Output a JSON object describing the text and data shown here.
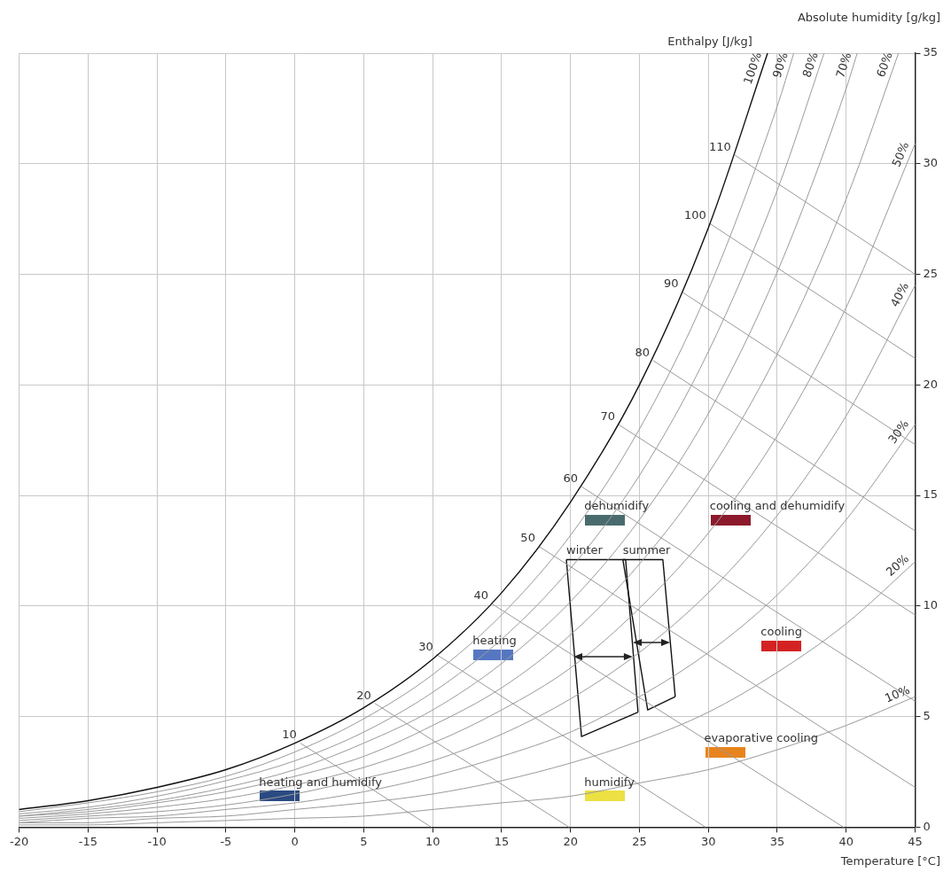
{
  "chart_data": {
    "type": "line",
    "xlabel": "Temperature [°C]",
    "ylabel": "Absolute humidity [g/kg]",
    "xlim": [
      -20,
      45
    ],
    "xticks": [
      -20,
      -15,
      -10,
      -5,
      0,
      5,
      10,
      15,
      20,
      25,
      30,
      35,
      40,
      45
    ],
    "ylim": [
      0,
      35
    ],
    "yticks": [
      0,
      5,
      10,
      15,
      20,
      25,
      30,
      35
    ],
    "grid": true,
    "legend": false,
    "marker": "none",
    "series": [
      {
        "name": "100%",
        "color": "#111111",
        "x": [
          -20,
          -15,
          -10,
          -5,
          0,
          5,
          10,
          15,
          20,
          25,
          30,
          34.3
        ],
        "values": [
          0.8,
          1.2,
          1.8,
          2.6,
          3.8,
          5.4,
          7.6,
          10.6,
          14.7,
          20.0,
          27.1,
          35
        ]
      },
      {
        "name": "90%",
        "color": "#9a9a9a",
        "x": [
          -20,
          -15,
          -10,
          -5,
          0,
          5,
          10,
          15,
          20,
          25,
          30,
          35,
          36.2
        ],
        "values": [
          0.7,
          1.1,
          1.6,
          2.3,
          3.4,
          4.9,
          6.9,
          9.6,
          13.2,
          18.0,
          24.3,
          32.6,
          35
        ]
      },
      {
        "name": "80%",
        "color": "#9a9a9a",
        "x": [
          -20,
          -15,
          -10,
          -5,
          0,
          5,
          10,
          15,
          20,
          25,
          30,
          35,
          38.4
        ],
        "values": [
          0.6,
          0.9,
          1.4,
          2.1,
          3.0,
          4.3,
          6.1,
          8.5,
          11.7,
          15.9,
          21.5,
          28.8,
          35
        ]
      },
      {
        "name": "70%",
        "color": "#9a9a9a",
        "x": [
          -20,
          -15,
          -10,
          -5,
          0,
          5,
          10,
          15,
          20,
          25,
          30,
          35,
          40,
          40.8
        ],
        "values": [
          0.5,
          0.8,
          1.2,
          1.8,
          2.6,
          3.8,
          5.3,
          7.4,
          10.2,
          13.9,
          18.7,
          25.1,
          33.4,
          35
        ]
      },
      {
        "name": "60%",
        "color": "#9a9a9a",
        "x": [
          -20,
          -15,
          -10,
          -5,
          0,
          5,
          10,
          15,
          20,
          25,
          30,
          35,
          40,
          43.8
        ],
        "values": [
          0.5,
          0.7,
          1.1,
          1.6,
          2.3,
          3.2,
          4.6,
          6.3,
          8.7,
          11.9,
          16.0,
          21.4,
          28.4,
          35
        ]
      },
      {
        "name": "50%",
        "color": "#9a9a9a",
        "x": [
          -20,
          -15,
          -10,
          -5,
          0,
          5,
          10,
          15,
          20,
          25,
          30,
          35,
          40,
          45
        ],
        "values": [
          0.4,
          0.6,
          0.9,
          1.3,
          1.9,
          2.7,
          3.8,
          5.3,
          7.2,
          9.9,
          13.3,
          17.7,
          23.5,
          30.9
        ]
      },
      {
        "name": "40%",
        "color": "#9a9a9a",
        "x": [
          -20,
          -15,
          -10,
          -5,
          0,
          5,
          10,
          15,
          20,
          25,
          30,
          35,
          40,
          45
        ],
        "values": [
          0.3,
          0.5,
          0.7,
          1.0,
          1.5,
          2.2,
          3.0,
          4.2,
          5.8,
          7.9,
          10.6,
          14.1,
          18.6,
          24.5
        ]
      },
      {
        "name": "30%",
        "color": "#9a9a9a",
        "x": [
          -20,
          -15,
          -10,
          -5,
          0,
          5,
          10,
          15,
          20,
          25,
          30,
          35,
          40,
          45
        ],
        "values": [
          0.2,
          0.4,
          0.5,
          0.8,
          1.1,
          1.6,
          2.3,
          3.2,
          4.3,
          5.9,
          7.9,
          10.5,
          13.9,
          18.2
        ]
      },
      {
        "name": "20%",
        "color": "#9a9a9a",
        "x": [
          -20,
          -15,
          -10,
          -5,
          0,
          5,
          10,
          15,
          20,
          25,
          30,
          35,
          40,
          45
        ],
        "values": [
          0.2,
          0.2,
          0.4,
          0.5,
          0.8,
          1.1,
          1.5,
          2.1,
          2.9,
          3.9,
          5.2,
          7.0,
          9.2,
          12.0
        ]
      },
      {
        "name": "10%",
        "color": "#9a9a9a",
        "x": [
          -20,
          -15,
          -10,
          -5,
          0,
          5,
          10,
          15,
          20,
          25,
          30,
          35,
          40,
          45
        ],
        "values": [
          0.1,
          0.1,
          0.2,
          0.3,
          0.4,
          0.5,
          0.8,
          1.1,
          1.4,
          2.0,
          2.6,
          3.5,
          4.6,
          5.9
        ]
      },
      {
        "name": "10",
        "color": "#9a9a9a",
        "x": [
          9.9,
          0.4
        ],
        "values": [
          0,
          3.8
        ]
      },
      {
        "name": "20",
        "color": "#9a9a9a",
        "x": [
          19.9,
          5.8
        ],
        "values": [
          0,
          5.6
        ]
      },
      {
        "name": "30",
        "color": "#9a9a9a",
        "x": [
          29.8,
          10.3
        ],
        "values": [
          0,
          7.8
        ]
      },
      {
        "name": "40",
        "color": "#9a9a9a",
        "x": [
          39.8,
          14.3
        ],
        "values": [
          0,
          10.1
        ]
      },
      {
        "name": "50",
        "color": "#9a9a9a",
        "x": [
          45,
          17.7
        ],
        "values": [
          1.8,
          12.7
        ]
      },
      {
        "name": "60",
        "color": "#9a9a9a",
        "x": [
          45,
          20.8
        ],
        "values": [
          5.7,
          15.4
        ]
      },
      {
        "name": "70",
        "color": "#9a9a9a",
        "x": [
          45,
          23.5
        ],
        "values": [
          9.6,
          18.2
        ]
      },
      {
        "name": "80",
        "color": "#9a9a9a",
        "x": [
          45,
          26
        ],
        "values": [
          13.4,
          21.1
        ]
      },
      {
        "name": "90",
        "color": "#9a9a9a",
        "x": [
          45,
          28.1
        ],
        "values": [
          17.3,
          24.2
        ]
      },
      {
        "name": "100",
        "color": "#9a9a9a",
        "x": [
          45,
          30.1
        ],
        "values": [
          21.2,
          27.3
        ]
      },
      {
        "name": "110",
        "color": "#9a9a9a",
        "x": [
          45,
          31.9
        ],
        "values": [
          25.0,
          30.4
        ]
      },
      {
        "name": "winter",
        "color": "#111111",
        "x": [
          19.7,
          24.0,
          24.9
        ],
        "values": [
          12.1,
          12.1,
          5.2
        ]
      },
      {
        "color": "#111111",
        "x": [
          19.7,
          20.8,
          24.9
        ],
        "values": [
          12.1,
          4.1,
          5.2
        ]
      },
      {
        "name": "summer",
        "color": "#111111",
        "x": [
          23.8,
          26.7,
          27.6
        ],
        "values": [
          12.1,
          12.1,
          5.9
        ]
      },
      {
        "color": "#111111",
        "x": [
          23.8,
          25.6,
          27.6
        ],
        "values": [
          12.1,
          5.3,
          5.9
        ]
      }
    ],
    "annotations": [
      "Enthalpy [J/kg]",
      "dehumidify",
      "cooling and dehumidify",
      "heating",
      "cooling",
      "evaporative cooling",
      "heating and humidify",
      "humidify"
    ]
  }
}
